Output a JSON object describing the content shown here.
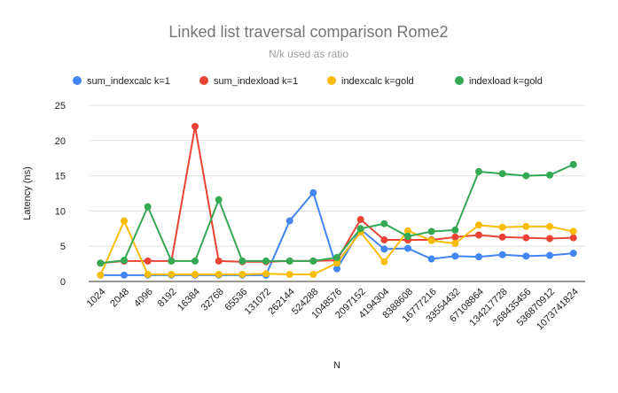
{
  "chart_data": {
    "type": "line",
    "title": "Linked list traversal comparison Rome2",
    "subtitle": "N/k used as ratio",
    "xlabel": "N",
    "ylabel": "Latency (ns)",
    "ylim": [
      0,
      25
    ],
    "yticks": [
      0,
      5,
      10,
      15,
      20,
      25
    ],
    "grid": true,
    "legend_position": "top",
    "categories": [
      "1024",
      "2048",
      "4096",
      "8192",
      "16384",
      "32768",
      "65536",
      "131072",
      "262144",
      "524288",
      "1048576",
      "2097152",
      "4194304",
      "8388608",
      "16777216",
      "33554432",
      "67108864",
      "134217728",
      "268435456",
      "536870912",
      "1073741824"
    ],
    "series": [
      {
        "name": "sum_indexcalc k=1",
        "color": "#4285f4",
        "values": [
          0.9,
          0.9,
          0.9,
          0.9,
          0.9,
          0.9,
          0.9,
          0.9,
          8.6,
          12.6,
          1.8,
          7.4,
          4.6,
          4.7,
          3.2,
          3.6,
          3.5,
          3.8,
          3.6,
          3.7,
          4.0
        ]
      },
      {
        "name": "sum_indexload k=1",
        "color": "#ea4335",
        "values": [
          2.6,
          2.9,
          2.9,
          2.9,
          22.0,
          2.9,
          2.8,
          2.8,
          2.9,
          2.9,
          3.0,
          8.8,
          5.9,
          5.9,
          5.9,
          6.3,
          6.6,
          6.3,
          6.2,
          6.1,
          6.2
        ]
      },
      {
        "name": "indexcalc k=gold",
        "color": "#fbbc04",
        "values": [
          0.9,
          8.6,
          1.0,
          1.0,
          1.0,
          1.0,
          1.0,
          1.1,
          1.0,
          1.0,
          2.6,
          7.0,
          2.8,
          7.2,
          5.8,
          5.4,
          8.0,
          7.7,
          7.8,
          7.8,
          7.1
        ]
      },
      {
        "name": "indexload k=gold",
        "color": "#34a853",
        "values": [
          2.6,
          3.0,
          10.6,
          2.9,
          2.9,
          11.6,
          2.9,
          2.9,
          2.9,
          2.9,
          3.4,
          7.5,
          8.2,
          6.4,
          7.1,
          7.3,
          15.6,
          15.3,
          15.0,
          15.1,
          16.6
        ]
      }
    ]
  }
}
